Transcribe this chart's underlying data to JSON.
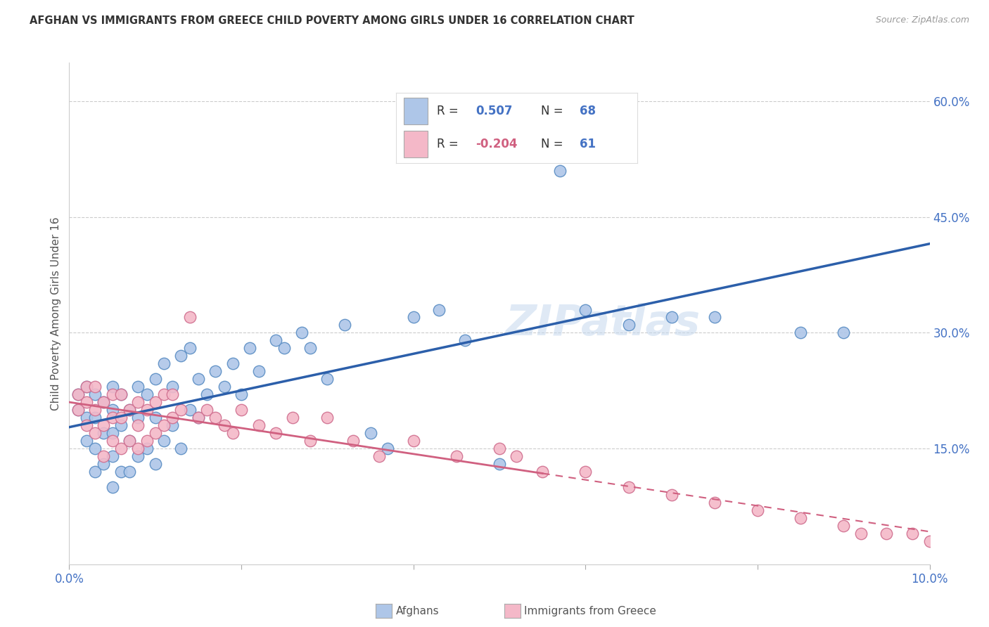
{
  "title": "AFGHAN VS IMMIGRANTS FROM GREECE CHILD POVERTY AMONG GIRLS UNDER 16 CORRELATION CHART",
  "source": "Source: ZipAtlas.com",
  "ylabel": "Child Poverty Among Girls Under 16",
  "xlim": [
    0.0,
    0.1
  ],
  "ylim": [
    0.0,
    0.65
  ],
  "afghan_color": "#aec6e8",
  "afghan_edge_color": "#5b8ec4",
  "afghan_line_color": "#2c5faa",
  "greece_color": "#f4b8c8",
  "greece_edge_color": "#d07090",
  "greece_line_color": "#d06080",
  "watermark": "ZIPatlas",
  "legend_R_afghan": "0.507",
  "legend_N_afghan": "68",
  "legend_R_greece": "-0.204",
  "legend_N_greece": "61",
  "ytick_vals": [
    0.15,
    0.3,
    0.45,
    0.6
  ],
  "yticklabels": [
    "15.0%",
    "30.0%",
    "45.0%",
    "60.0%"
  ],
  "afghan_scatter_x": [
    0.001,
    0.001,
    0.002,
    0.002,
    0.002,
    0.003,
    0.003,
    0.003,
    0.003,
    0.004,
    0.004,
    0.004,
    0.005,
    0.005,
    0.005,
    0.005,
    0.005,
    0.006,
    0.006,
    0.006,
    0.007,
    0.007,
    0.007,
    0.008,
    0.008,
    0.008,
    0.009,
    0.009,
    0.01,
    0.01,
    0.01,
    0.011,
    0.011,
    0.012,
    0.012,
    0.013,
    0.013,
    0.014,
    0.014,
    0.015,
    0.015,
    0.016,
    0.017,
    0.018,
    0.019,
    0.02,
    0.021,
    0.022,
    0.024,
    0.025,
    0.027,
    0.028,
    0.03,
    0.032,
    0.035,
    0.037,
    0.04,
    0.043,
    0.046,
    0.05,
    0.053,
    0.057,
    0.06,
    0.065,
    0.07,
    0.075,
    0.085,
    0.09
  ],
  "afghan_scatter_y": [
    0.2,
    0.22,
    0.16,
    0.19,
    0.23,
    0.12,
    0.15,
    0.19,
    0.22,
    0.13,
    0.17,
    0.21,
    0.1,
    0.14,
    0.17,
    0.2,
    0.23,
    0.12,
    0.18,
    0.22,
    0.12,
    0.16,
    0.2,
    0.14,
    0.19,
    0.23,
    0.15,
    0.22,
    0.13,
    0.19,
    0.24,
    0.16,
    0.26,
    0.18,
    0.23,
    0.15,
    0.27,
    0.2,
    0.28,
    0.19,
    0.24,
    0.22,
    0.25,
    0.23,
    0.26,
    0.22,
    0.28,
    0.25,
    0.29,
    0.28,
    0.3,
    0.28,
    0.24,
    0.31,
    0.17,
    0.15,
    0.32,
    0.33,
    0.29,
    0.13,
    0.55,
    0.51,
    0.33,
    0.31,
    0.32,
    0.32,
    0.3,
    0.3
  ],
  "greece_scatter_x": [
    0.001,
    0.001,
    0.002,
    0.002,
    0.002,
    0.003,
    0.003,
    0.003,
    0.004,
    0.004,
    0.004,
    0.005,
    0.005,
    0.005,
    0.006,
    0.006,
    0.006,
    0.007,
    0.007,
    0.008,
    0.008,
    0.008,
    0.009,
    0.009,
    0.01,
    0.01,
    0.011,
    0.011,
    0.012,
    0.012,
    0.013,
    0.014,
    0.015,
    0.016,
    0.017,
    0.018,
    0.019,
    0.02,
    0.022,
    0.024,
    0.026,
    0.028,
    0.03,
    0.033,
    0.036,
    0.04,
    0.045,
    0.05,
    0.052,
    0.055,
    0.06,
    0.065,
    0.07,
    0.075,
    0.08,
    0.085,
    0.09,
    0.092,
    0.095,
    0.098,
    0.1
  ],
  "greece_scatter_y": [
    0.22,
    0.2,
    0.21,
    0.18,
    0.23,
    0.17,
    0.2,
    0.23,
    0.14,
    0.18,
    0.21,
    0.16,
    0.19,
    0.22,
    0.15,
    0.19,
    0.22,
    0.16,
    0.2,
    0.15,
    0.18,
    0.21,
    0.16,
    0.2,
    0.17,
    0.21,
    0.18,
    0.22,
    0.19,
    0.22,
    0.2,
    0.32,
    0.19,
    0.2,
    0.19,
    0.18,
    0.17,
    0.2,
    0.18,
    0.17,
    0.19,
    0.16,
    0.19,
    0.16,
    0.14,
    0.16,
    0.14,
    0.15,
    0.14,
    0.12,
    0.12,
    0.1,
    0.09,
    0.08,
    0.07,
    0.06,
    0.05,
    0.04,
    0.04,
    0.04,
    0.03
  ]
}
